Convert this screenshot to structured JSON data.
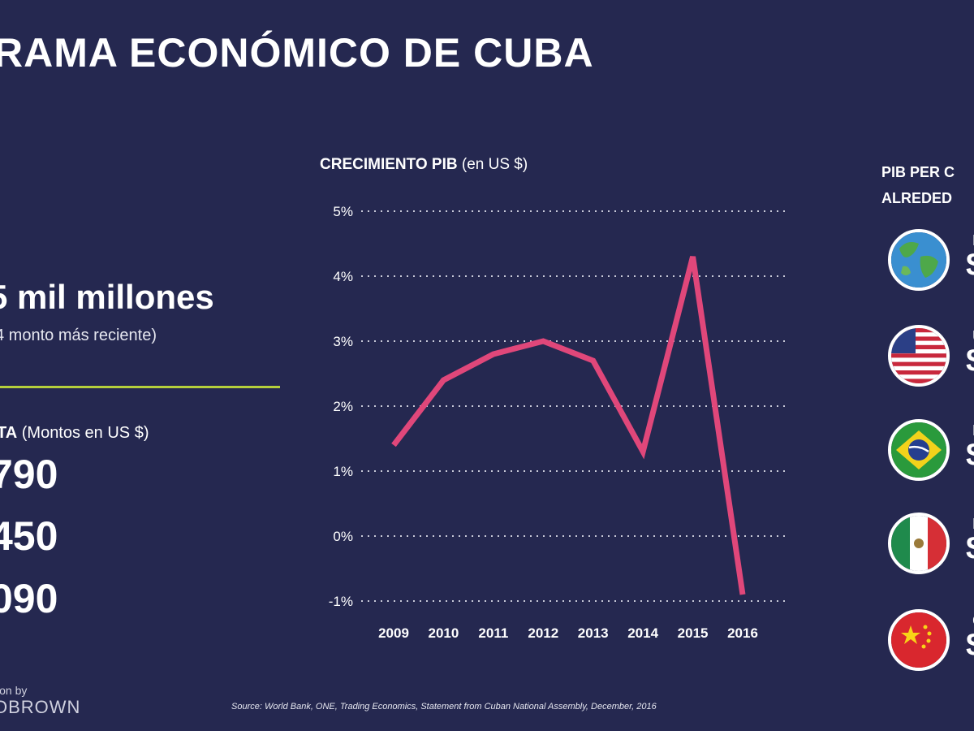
{
  "header": {
    "title": "RAMA ECONÓMICO DE CUBA"
  },
  "gdp_total": {
    "value": "5 mil millones",
    "note": "4 monto más reciente)"
  },
  "per_capita": {
    "title_bold": "TA",
    "title_rest": " (Montos en US $)",
    "values": [
      "790",
      "450",
      "090"
    ]
  },
  "chart_data": {
    "type": "line",
    "title": "CRECIMIENTO PIB",
    "title_unit": "(en US $)",
    "x": [
      "2009",
      "2010",
      "2011",
      "2012",
      "2013",
      "2014",
      "2015",
      "2016"
    ],
    "series": [
      {
        "values": [
          1.4,
          2.4,
          2.8,
          3.0,
          2.7,
          1.3,
          4.3,
          -0.9
        ]
      }
    ],
    "y_ticks": [
      "5%",
      "4%",
      "3%",
      "2%",
      "1%",
      "0%",
      "-1%"
    ],
    "ylim": [
      -1,
      5
    ],
    "grid": true,
    "line_color": "#e0477a"
  },
  "region": {
    "title_lines": [
      "PIB PER C",
      "ALREDED"
    ],
    "flags": [
      {
        "icon": "globe-icon",
        "letter": "P",
        "value": "$"
      },
      {
        "icon": "usa-flag-icon",
        "letter": "U",
        "value": "$"
      },
      {
        "icon": "brazil-flag-icon",
        "letter": "B",
        "value": "$"
      },
      {
        "icon": "mexico-flag-icon",
        "letter": "M",
        "value": "$"
      },
      {
        "icon": "china-flag-icon",
        "letter": "C",
        "value": "$"
      }
    ]
  },
  "footer": {
    "credit_line1": "ion by",
    "credit_line2": "OBROWN",
    "source": "Source: World Bank, ONE, Trading Economics, Statement from Cuban National Assembly, December, 2016"
  }
}
